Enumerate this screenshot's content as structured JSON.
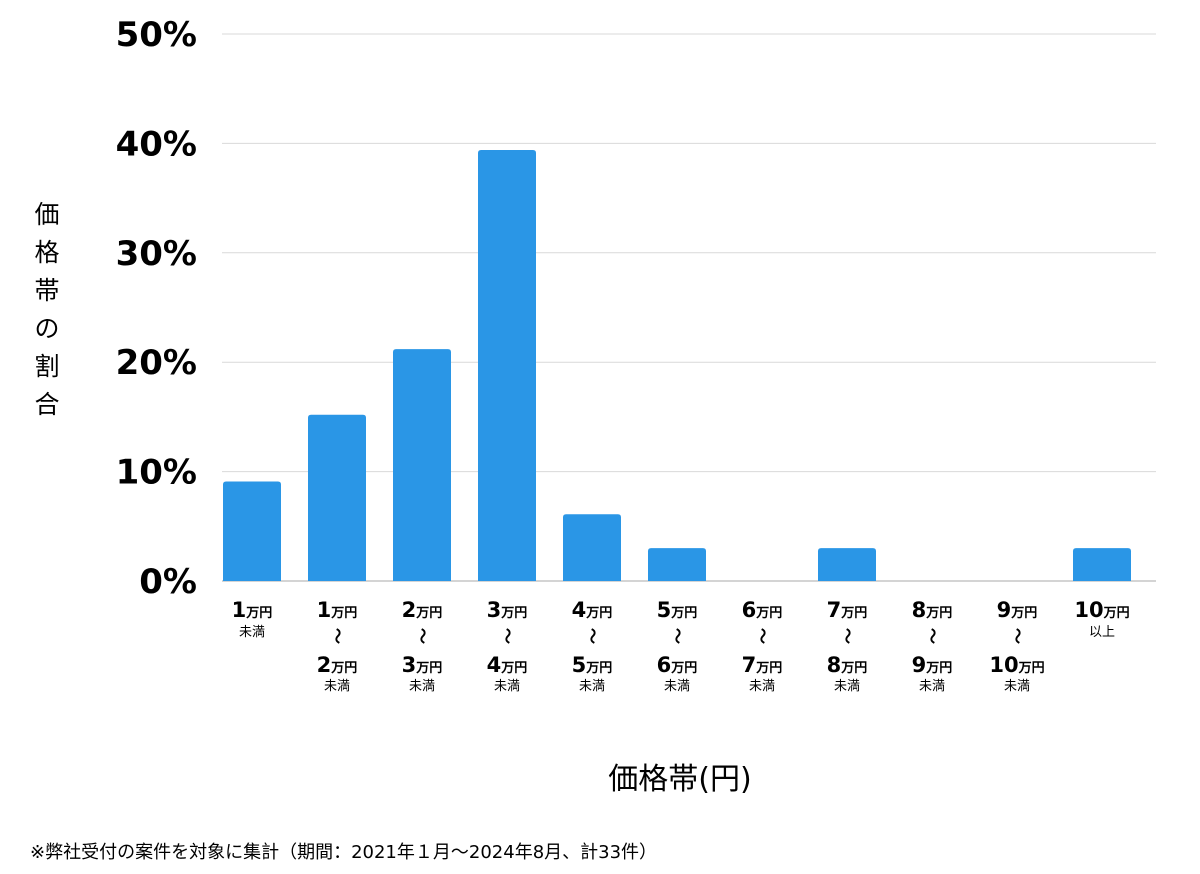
{
  "chart_data": {
    "type": "bar",
    "ylabel": "価格帯の割合",
    "xlabel": "価格帯(円)",
    "ylim": [
      0,
      50
    ],
    "yticks": [
      "0%",
      "10%",
      "20%",
      "30%",
      "40%",
      "50%"
    ],
    "ytick_values": [
      0,
      10,
      20,
      30,
      40,
      50
    ],
    "grid": true,
    "bar_color": "#2a96e6",
    "categories": [
      {
        "top": "1",
        "top_unit": "万円",
        "sep": "",
        "bottom": "",
        "bottom_unit": "",
        "note": "未満"
      },
      {
        "top": "1",
        "top_unit": "万円",
        "sep": "〜",
        "bottom": "2",
        "bottom_unit": "万円",
        "note": "未満"
      },
      {
        "top": "2",
        "top_unit": "万円",
        "sep": "〜",
        "bottom": "3",
        "bottom_unit": "万円",
        "note": "未満"
      },
      {
        "top": "3",
        "top_unit": "万円",
        "sep": "〜",
        "bottom": "4",
        "bottom_unit": "万円",
        "note": "未満"
      },
      {
        "top": "4",
        "top_unit": "万円",
        "sep": "〜",
        "bottom": "5",
        "bottom_unit": "万円",
        "note": "未満"
      },
      {
        "top": "5",
        "top_unit": "万円",
        "sep": "〜",
        "bottom": "6",
        "bottom_unit": "万円",
        "note": "未満"
      },
      {
        "top": "6",
        "top_unit": "万円",
        "sep": "〜",
        "bottom": "7",
        "bottom_unit": "万円",
        "note": "未満"
      },
      {
        "top": "7",
        "top_unit": "万円",
        "sep": "〜",
        "bottom": "8",
        "bottom_unit": "万円",
        "note": "未満"
      },
      {
        "top": "8",
        "top_unit": "万円",
        "sep": "〜",
        "bottom": "9",
        "bottom_unit": "万円",
        "note": "未満"
      },
      {
        "top": "9",
        "top_unit": "万円",
        "sep": "〜",
        "bottom": "10",
        "bottom_unit": "万円",
        "note": "未満"
      },
      {
        "top": "10",
        "top_unit": "万円",
        "sep": "",
        "bottom": "",
        "bottom_unit": "",
        "note": "以上"
      }
    ],
    "values": [
      9.1,
      15.2,
      21.2,
      39.4,
      6.1,
      3.0,
      0,
      3.0,
      0,
      0,
      3.0
    ]
  },
  "footnote": "※弊社受付の案件を対象に集計（期間：2021年１月〜2024年8月、計33件）"
}
